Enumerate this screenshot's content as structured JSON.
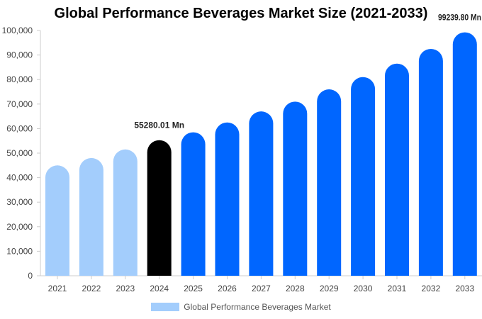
{
  "chart_data": {
    "type": "bar",
    "title": "Global Performance Beverages Market Size (2021-2033)",
    "categories": [
      "2021",
      "2022",
      "2023",
      "2024",
      "2025",
      "2026",
      "2027",
      "2028",
      "2029",
      "2030",
      "2031",
      "2032",
      "2033"
    ],
    "series": [
      {
        "name": "Global Performance Beverages Market",
        "values": [
          45000,
          48000,
          51500,
          55280.01,
          58500,
          62500,
          67000,
          71000,
          76000,
          81000,
          86500,
          92500,
          99239.8
        ]
      }
    ],
    "ylim": [
      0,
      100000
    ],
    "yticks": [
      "0",
      "10,000",
      "20,000",
      "30,000",
      "40,000",
      "50,000",
      "60,000",
      "70,000",
      "80,000",
      "90,000",
      "100,000"
    ],
    "ytick_values": [
      0,
      10000,
      20000,
      30000,
      40000,
      50000,
      60000,
      70000,
      80000,
      90000,
      100000
    ],
    "annotations": [
      {
        "category": "2024",
        "text": "55280.01 Mn"
      },
      {
        "category": "2033",
        "text": "99239.80 Mn"
      }
    ],
    "colors": {
      "historical": "#a3cdfc",
      "current": "#000000",
      "forecast": "#0066ff",
      "legend": "#a3cdfc",
      "axis": "#cccccc"
    },
    "bar_color_groups": [
      "historical",
      "historical",
      "historical",
      "current",
      "forecast",
      "forecast",
      "forecast",
      "forecast",
      "forecast",
      "forecast",
      "forecast",
      "forecast",
      "forecast"
    ],
    "legend": {
      "label": "Global Performance Beverages Market",
      "position": "bottom"
    },
    "grid": false
  }
}
